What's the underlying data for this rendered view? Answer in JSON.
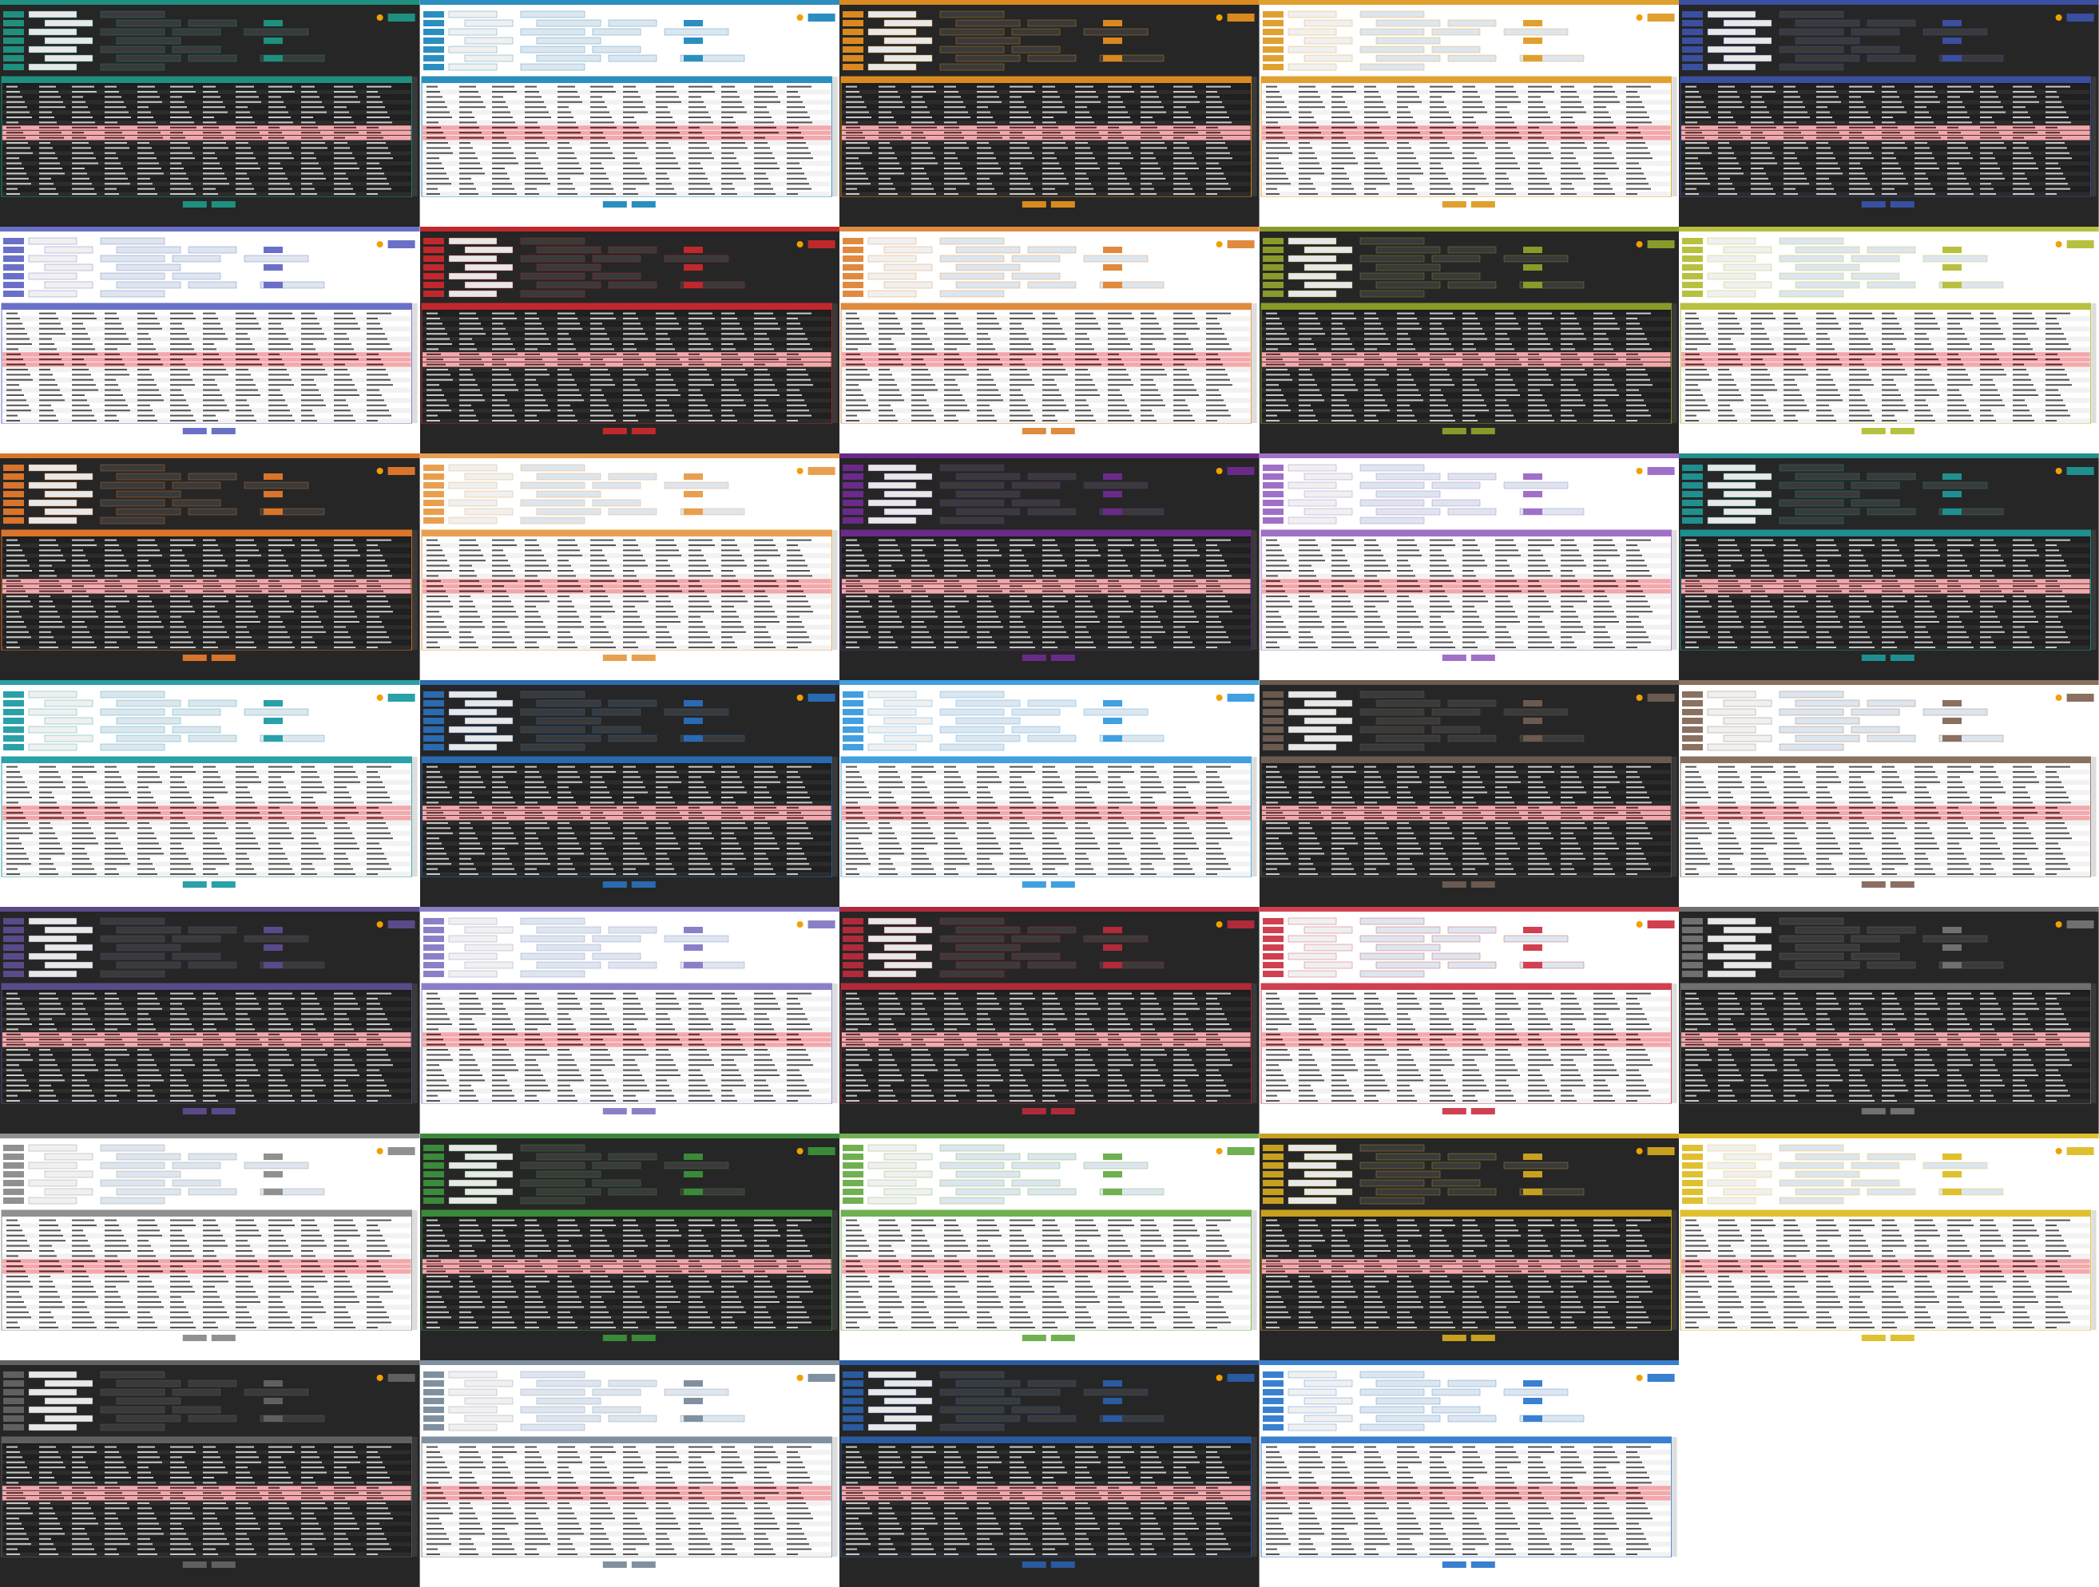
{
  "tiles": [
    {
      "mode": "dark",
      "accent": "#1f8f7f"
    },
    {
      "mode": "light",
      "accent": "#2a8fbf"
    },
    {
      "mode": "dark",
      "accent": "#d9891f"
    },
    {
      "mode": "light",
      "accent": "#e0a030"
    },
    {
      "mode": "dark",
      "accent": "#3a4fa0"
    },
    {
      "mode": "light",
      "accent": "#6a70c8"
    },
    {
      "mode": "dark",
      "accent": "#c0282c"
    },
    {
      "mode": "light",
      "accent": "#e08a40"
    },
    {
      "mode": "dark",
      "accent": "#8a9a2a"
    },
    {
      "mode": "light",
      "accent": "#b8c040"
    },
    {
      "mode": "dark",
      "accent": "#d9742a"
    },
    {
      "mode": "light",
      "accent": "#e8a050"
    },
    {
      "mode": "dark",
      "accent": "#6a2a8a"
    },
    {
      "mode": "light",
      "accent": "#a070c8"
    },
    {
      "mode": "dark",
      "accent": "#1f8f8f"
    },
    {
      "mode": "light",
      "accent": "#2aa0a8"
    },
    {
      "mode": "dark",
      "accent": "#2a6ab0"
    },
    {
      "mode": "light",
      "accent": "#40a0e0"
    },
    {
      "mode": "dark",
      "accent": "#6a5a50"
    },
    {
      "mode": "light",
      "accent": "#8a7060"
    },
    {
      "mode": "dark",
      "accent": "#5a4a8a"
    },
    {
      "mode": "light",
      "accent": "#8a80c8"
    },
    {
      "mode": "dark",
      "accent": "#b02a3a"
    },
    {
      "mode": "light",
      "accent": "#d04050"
    },
    {
      "mode": "dark",
      "accent": "#707070"
    },
    {
      "mode": "light",
      "accent": "#909090"
    },
    {
      "mode": "dark",
      "accent": "#3a8a3a"
    },
    {
      "mode": "light",
      "accent": "#70b050"
    },
    {
      "mode": "dark",
      "accent": "#c8a020"
    },
    {
      "mode": "light",
      "accent": "#e0c030"
    },
    {
      "mode": "dark",
      "accent": "#606060"
    },
    {
      "mode": "light",
      "accent": "#8090a0"
    },
    {
      "mode": "dark",
      "accent": "#2a5aa0"
    },
    {
      "mode": "light",
      "accent": "#3a80d0"
    }
  ]
}
